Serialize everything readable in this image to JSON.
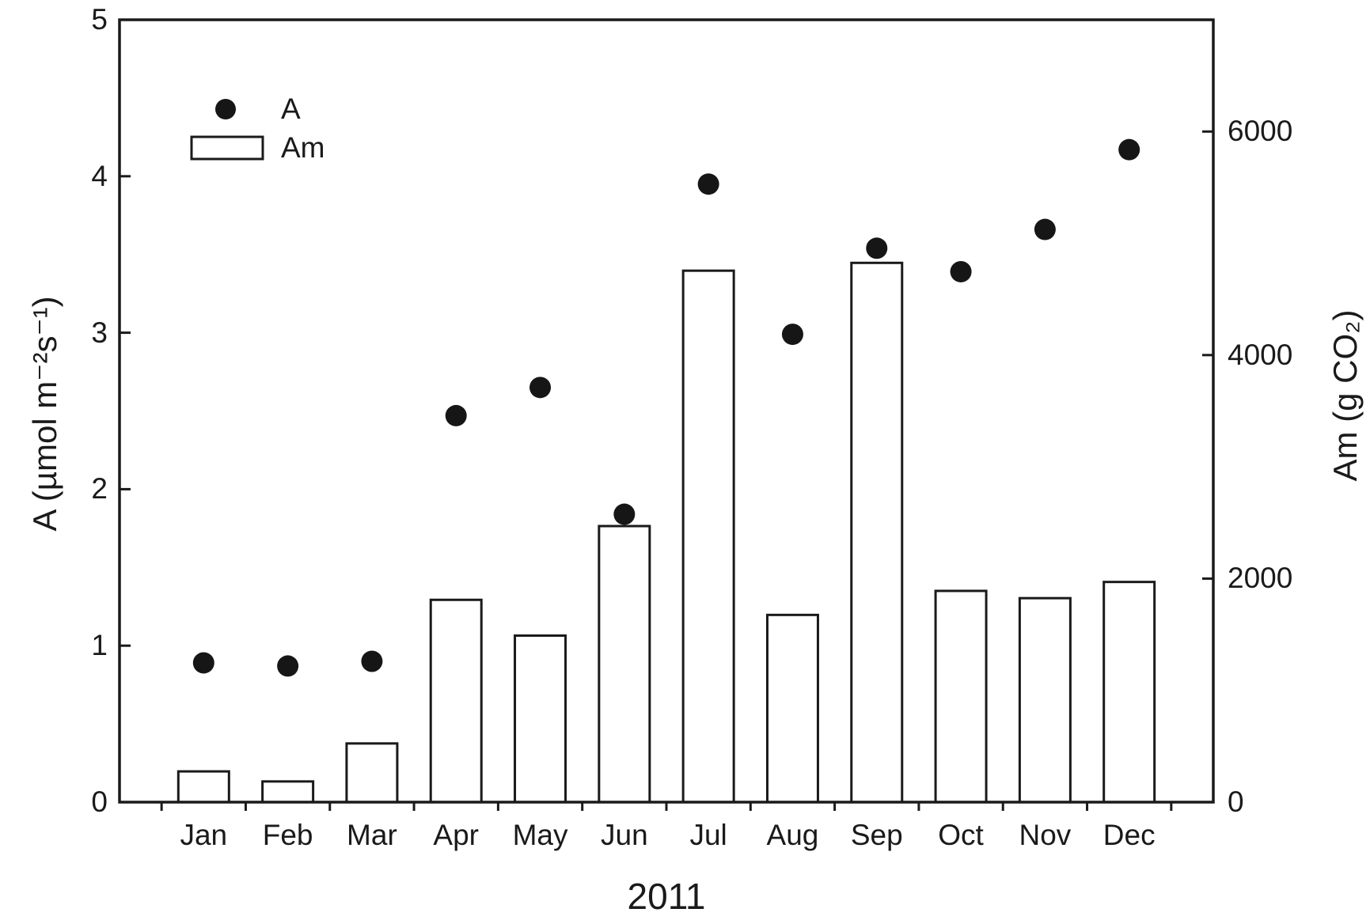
{
  "colors": {
    "ink": "#1a1a1a",
    "background": "#ffffff",
    "bar_fill": "#ffffff",
    "dot_fill": "#161616"
  },
  "chart_data": {
    "type": "combo",
    "title": "",
    "x": {
      "categories": [
        "Jan",
        "Feb",
        "Mar",
        "Apr",
        "May",
        "Jun",
        "Jul",
        "Aug",
        "Sep",
        "Oct",
        "Nov",
        "Dec"
      ],
      "label": "2011"
    },
    "axes": {
      "left": {
        "label": "A (µmol m⁻²s⁻¹)",
        "lim": [
          0,
          5
        ],
        "ticks": [
          0,
          1,
          2,
          3,
          4,
          5
        ]
      },
      "right": {
        "label": "Am (g CO₂)",
        "lim": [
          0,
          7000
        ],
        "ticks": [
          0,
          2000,
          4000,
          6000
        ]
      }
    },
    "series": [
      {
        "name": "A",
        "type": "scatter",
        "axis": "left",
        "marker": "filled-circle",
        "color": "#161616",
        "values": [
          0.89,
          0.87,
          0.9,
          2.47,
          2.65,
          1.84,
          3.95,
          2.99,
          3.54,
          3.39,
          3.66,
          4.17
        ]
      },
      {
        "name": "Am",
        "type": "bar",
        "axis": "right",
        "fill": "#ffffff",
        "stroke": "#1a1a1a",
        "values": [
          275,
          185,
          525,
          1810,
          1490,
          2470,
          4755,
          1675,
          4825,
          1890,
          1825,
          1970
        ]
      }
    ],
    "grid": false,
    "legend": {
      "position": "upper-left-inside",
      "entries": [
        {
          "label": "A",
          "marker": "filled-dot"
        },
        {
          "label": "Am",
          "marker": "open-bar"
        }
      ]
    }
  }
}
